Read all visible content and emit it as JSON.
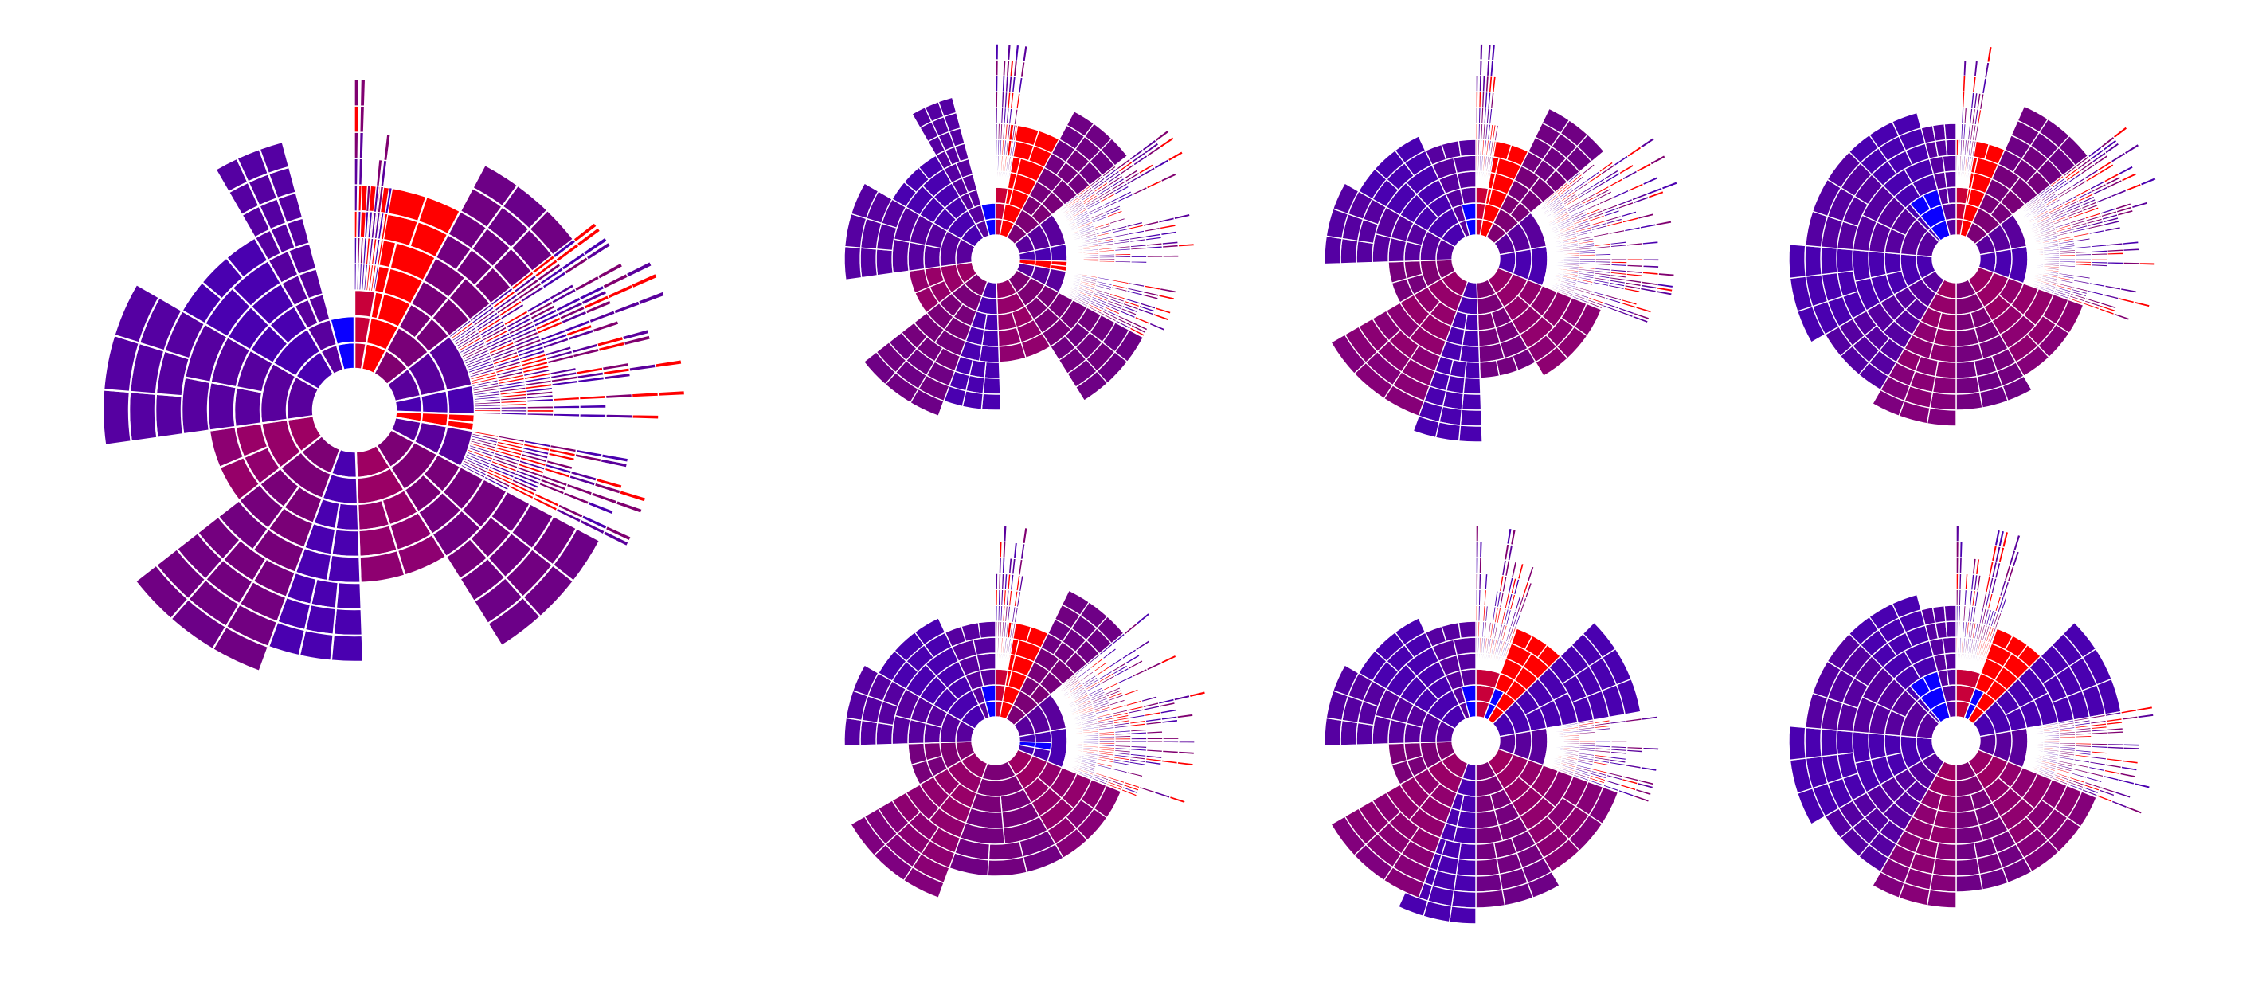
{
  "figure": {
    "background": "#ffffff",
    "segment_border": "#ffffff"
  },
  "palette": {
    "red": "#ff0000",
    "crimson": "#c8003a",
    "magenta": "#a00060",
    "plum": "#800070",
    "violet": "#5a009c",
    "indigo": "#4a00b0",
    "blue": "#0a00ff"
  },
  "diagrams": [
    {
      "id": "large",
      "variant": 0
    },
    {
      "id": "top-1",
      "variant": 0
    },
    {
      "id": "top-2",
      "variant": 1
    },
    {
      "id": "top-3",
      "variant": 2
    },
    {
      "id": "bottom-1",
      "variant": 3
    },
    {
      "id": "bottom-2",
      "variant": 4
    },
    {
      "id": "bottom-3",
      "variant": 5
    }
  ]
}
